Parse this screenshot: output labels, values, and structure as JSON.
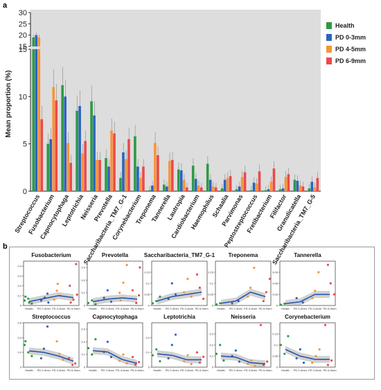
{
  "panel_a_label": "a",
  "panel_b_label": "b",
  "legend": [
    {
      "name": "Health",
      "color": "#2e9a45"
    },
    {
      "name": "PD 0-3mm",
      "color": "#2d63c0"
    },
    {
      "name": "PD 4-5mm",
      "color": "#f7943a"
    },
    {
      "name": "PD 6-9mm",
      "color": "#ea4a4a"
    }
  ],
  "chart_data": [
    {
      "type": "bar",
      "ylabel": "Mean proportion (%)",
      "ylim_lower": [
        0,
        15
      ],
      "ylim_upper": [
        15,
        30
      ],
      "yticks_lower": [
        0,
        5,
        10,
        15
      ],
      "yticks_upper": [
        15,
        20,
        25,
        30
      ],
      "grid": false,
      "legend_placement": "right",
      "categories": [
        "Streptococcus",
        "Fusobacterium",
        "Capnocytophaga",
        "Leptotrichia",
        "Neisseria",
        "Prevotella",
        "Saccharibacteria_TM7_G-1",
        "Corynebacterium",
        "Treponema",
        "Tannerella",
        "Lautropia",
        "Cardiobacterium",
        "Haemophilus",
        "Schaalia",
        "Parvimonas",
        "Peptostreptococcus",
        "Fretibacterium",
        "Filifactor",
        "Granulicatella",
        "Saccharibacteria_TM7_G-5"
      ],
      "series": [
        {
          "name": "Health",
          "color": "#2e9a45",
          "values": [
            19,
            5.0,
            11.2,
            8.5,
            9.5,
            3.5,
            1.4,
            5.8,
            0.1,
            0.7,
            2.3,
            2.7,
            2.9,
            0.3,
            0.2,
            0.1,
            0.1,
            0.2,
            1.2,
            0.3
          ]
        },
        {
          "name": "PD 0-3mm",
          "color": "#2d63c0",
          "values": [
            20,
            5.5,
            10.0,
            9.0,
            8.0,
            2.6,
            4.1,
            2.6,
            0.6,
            0.5,
            2.2,
            1.3,
            1.2,
            1.2,
            0.5,
            0.9,
            0.2,
            0.3,
            1.1,
            1.0
          ]
        },
        {
          "name": "PD 4-5mm",
          "color": "#f7943a",
          "values": [
            19,
            11.0,
            5.1,
            4.0,
            3.3,
            6.4,
            3.4,
            1.4,
            5.1,
            3.2,
            1.2,
            0.6,
            0.5,
            1.4,
            1.5,
            0.8,
            1.0,
            1.5,
            0.6,
            0.4
          ]
        },
        {
          "name": "PD 6-9mm",
          "color": "#ea4a4a",
          "values": [
            7.6,
            9.6,
            3.0,
            5.3,
            3.3,
            6.1,
            5.5,
            2.6,
            3.8,
            3.3,
            0.4,
            0.4,
            0.4,
            1.6,
            2.0,
            2.1,
            2.4,
            1.8,
            0.5,
            1.4
          ]
        }
      ]
    },
    {
      "type": "scatter",
      "title": "Fusobacterium",
      "x_categories": [
        "Health",
        "PD 0-3mm",
        "PD 4-5mm",
        "PD 6-9mm"
      ],
      "ylim": [
        0,
        0.45
      ],
      "yticks": [
        0.0,
        0.1,
        0.2,
        0.3,
        0.4
      ],
      "trend": [
        0.04,
        0.07,
        0.1,
        0.08
      ],
      "points": [
        [
          0,
          0.05
        ],
        [
          0,
          0.07
        ],
        [
          0,
          0.02
        ],
        [
          0,
          0.09
        ],
        [
          0,
          0.03
        ],
        [
          1,
          0.12
        ],
        [
          1,
          0.05
        ],
        [
          1,
          0.08
        ],
        [
          1,
          0.03
        ],
        [
          2,
          0.15
        ],
        [
          2,
          0.1
        ],
        [
          2,
          0.06
        ],
        [
          2,
          0.22
        ],
        [
          3,
          0.42
        ],
        [
          3,
          0.2
        ],
        [
          3,
          0.06
        ],
        [
          3,
          0.11
        ],
        [
          3,
          0.03
        ]
      ]
    },
    {
      "type": "scatter",
      "title": "Prevotella",
      "x_categories": [
        "Health",
        "PD 0-3mm",
        "PD 4-5mm",
        "PD 6-9mm"
      ],
      "ylim": [
        0,
        0.35
      ],
      "yticks": [
        0.0,
        0.1,
        0.2,
        0.3
      ],
      "trend": [
        0.03,
        0.05,
        0.06,
        0.05
      ],
      "points": [
        [
          0,
          0.02
        ],
        [
          0,
          0.04
        ],
        [
          0,
          0.01
        ],
        [
          1,
          0.06
        ],
        [
          1,
          0.12
        ],
        [
          1,
          0.03
        ],
        [
          2,
          0.1
        ],
        [
          2,
          0.18
        ],
        [
          2,
          0.32
        ],
        [
          2,
          0.04
        ],
        [
          3,
          0.08
        ],
        [
          3,
          0.12
        ],
        [
          3,
          0.02
        ],
        [
          3,
          0.3
        ]
      ]
    },
    {
      "type": "scatter",
      "title": "Saccharibacteria_TM7_G-1",
      "x_categories": [
        "Health",
        "PD 0-3mm",
        "PD 4-5mm",
        "PD 6-9mm"
      ],
      "ylim": [
        0,
        0.2
      ],
      "yticks": [
        0.0,
        0.05,
        0.1,
        0.15
      ],
      "trend": [
        0.02,
        0.04,
        0.05,
        0.06
      ],
      "points": [
        [
          0,
          0.01
        ],
        [
          0,
          0.02
        ],
        [
          0,
          0.04
        ],
        [
          1,
          0.03
        ],
        [
          1,
          0.1
        ],
        [
          1,
          0.05
        ],
        [
          2,
          0.06
        ],
        [
          2,
          0.12
        ],
        [
          2,
          0.04
        ],
        [
          3,
          0.08
        ],
        [
          3,
          0.03
        ],
        [
          3,
          0.14
        ]
      ]
    },
    {
      "type": "scatter",
      "title": "Treponema",
      "x_categories": [
        "Health",
        "PD 0-3mm",
        "PD 4-5mm",
        "PD 6-9mm"
      ],
      "ylim": [
        0,
        0.2
      ],
      "yticks": [
        0.0,
        0.05,
        0.1,
        0.15
      ],
      "trend": [
        0.01,
        0.02,
        0.06,
        0.04
      ],
      "points": [
        [
          0,
          0.005
        ],
        [
          0,
          0.01
        ],
        [
          1,
          0.02
        ],
        [
          1,
          0.01
        ],
        [
          2,
          0.08
        ],
        [
          2,
          0.17
        ],
        [
          2,
          0.04
        ],
        [
          3,
          0.06
        ],
        [
          3,
          0.12
        ],
        [
          3,
          0.02
        ]
      ]
    },
    {
      "type": "scatter",
      "title": "Tannerella",
      "x_categories": [
        "Health",
        "PD 0-3mm",
        "PD 4-5mm",
        "PD 6-9mm"
      ],
      "ylim": [
        0,
        0.12
      ],
      "yticks": [
        0.0,
        0.03,
        0.06,
        0.09
      ],
      "trend": [
        0.005,
        0.01,
        0.03,
        0.03
      ],
      "points": [
        [
          0,
          0.002
        ],
        [
          0,
          0.005
        ],
        [
          1,
          0.008
        ],
        [
          1,
          0.02
        ],
        [
          2,
          0.04
        ],
        [
          2,
          0.09
        ],
        [
          2,
          0.02
        ],
        [
          3,
          0.06
        ],
        [
          3,
          0.03
        ],
        [
          3,
          0.11
        ]
      ]
    },
    {
      "type": "scatter",
      "title": "Streptococcus",
      "x_categories": [
        "Health",
        "PD 0-3mm",
        "PD 4-5mm",
        "PD 6-9mm"
      ],
      "ylim": [
        0,
        0.6
      ],
      "yticks": [
        0.0,
        0.2,
        0.4,
        0.6
      ],
      "trend": [
        0.22,
        0.2,
        0.15,
        0.08
      ],
      "points": [
        [
          0,
          0.3
        ],
        [
          0,
          0.2
        ],
        [
          0,
          0.15
        ],
        [
          0,
          0.35
        ],
        [
          1,
          0.25
        ],
        [
          1,
          0.55
        ],
        [
          1,
          0.12
        ],
        [
          2,
          0.18
        ],
        [
          2,
          0.1
        ],
        [
          2,
          0.35
        ],
        [
          3,
          0.05
        ],
        [
          3,
          0.12
        ],
        [
          3,
          0.03
        ]
      ]
    },
    {
      "type": "scatter",
      "title": "Capnocytophaga",
      "x_categories": [
        "Health",
        "PD 0-3mm",
        "PD 4-5mm",
        "PD 6-9mm"
      ],
      "ylim": [
        0,
        0.35
      ],
      "yticks": [
        0.0,
        0.1,
        0.2,
        0.3
      ],
      "trend": [
        0.13,
        0.12,
        0.06,
        0.03
      ],
      "points": [
        [
          0,
          0.15
        ],
        [
          0,
          0.1
        ],
        [
          0,
          0.22
        ],
        [
          1,
          0.12
        ],
        [
          1,
          0.2
        ],
        [
          1,
          0.08
        ],
        [
          2,
          0.05
        ],
        [
          2,
          0.1
        ],
        [
          2,
          0.03
        ],
        [
          3,
          0.02
        ],
        [
          3,
          0.04
        ],
        [
          3,
          0.08
        ]
      ]
    },
    {
      "type": "scatter",
      "title": "Leptotrichia",
      "x_categories": [
        "Health",
        "PD 0-3mm",
        "PD 4-5mm",
        "PD 6-9mm"
      ],
      "ylim": [
        0,
        0.3
      ],
      "yticks": [
        0.0,
        0.1,
        0.2
      ],
      "trend": [
        0.09,
        0.08,
        0.05,
        0.05
      ],
      "points": [
        [
          0,
          0.08
        ],
        [
          0,
          0.12
        ],
        [
          0,
          0.04
        ],
        [
          1,
          0.06
        ],
        [
          1,
          0.15
        ],
        [
          1,
          0.22
        ],
        [
          2,
          0.04
        ],
        [
          2,
          0.08
        ],
        [
          2,
          0.02
        ],
        [
          3,
          0.03
        ],
        [
          3,
          0.07
        ],
        [
          3,
          0.1
        ]
      ]
    },
    {
      "type": "scatter",
      "title": "Neisseria",
      "x_categories": [
        "Health",
        "PD 0-3mm",
        "PD 4-5mm",
        "PD 6-9mm"
      ],
      "ylim": [
        0,
        0.4
      ],
      "yticks": [
        0.0,
        0.1,
        0.2,
        0.3
      ],
      "trend": [
        0.1,
        0.09,
        0.04,
        0.03
      ],
      "points": [
        [
          0,
          0.12
        ],
        [
          0,
          0.2
        ],
        [
          0,
          0.06
        ],
        [
          1,
          0.1
        ],
        [
          1,
          0.15
        ],
        [
          1,
          0.05
        ],
        [
          2,
          0.03
        ],
        [
          2,
          0.06
        ],
        [
          2,
          0.01
        ],
        [
          3,
          0.02
        ],
        [
          3,
          0.05
        ],
        [
          3,
          0.38
        ]
      ]
    },
    {
      "type": "scatter",
      "title": "Corynebacterium",
      "x_categories": [
        "Health",
        "PD 0-3mm",
        "PD 4-5mm",
        "PD 6-9mm"
      ],
      "ylim": [
        0,
        0.2
      ],
      "yticks": [
        0.0,
        0.05,
        0.1,
        0.15
      ],
      "trend": [
        0.08,
        0.05,
        0.035,
        0.035
      ],
      "points": [
        [
          0,
          0.1
        ],
        [
          0,
          0.06
        ],
        [
          0,
          0.14
        ],
        [
          1,
          0.04
        ],
        [
          1,
          0.08
        ],
        [
          1,
          0.02
        ],
        [
          2,
          0.02
        ],
        [
          2,
          0.05
        ],
        [
          2,
          0.08
        ],
        [
          3,
          0.01
        ],
        [
          3,
          0.03
        ],
        [
          3,
          0.19
        ]
      ]
    }
  ]
}
